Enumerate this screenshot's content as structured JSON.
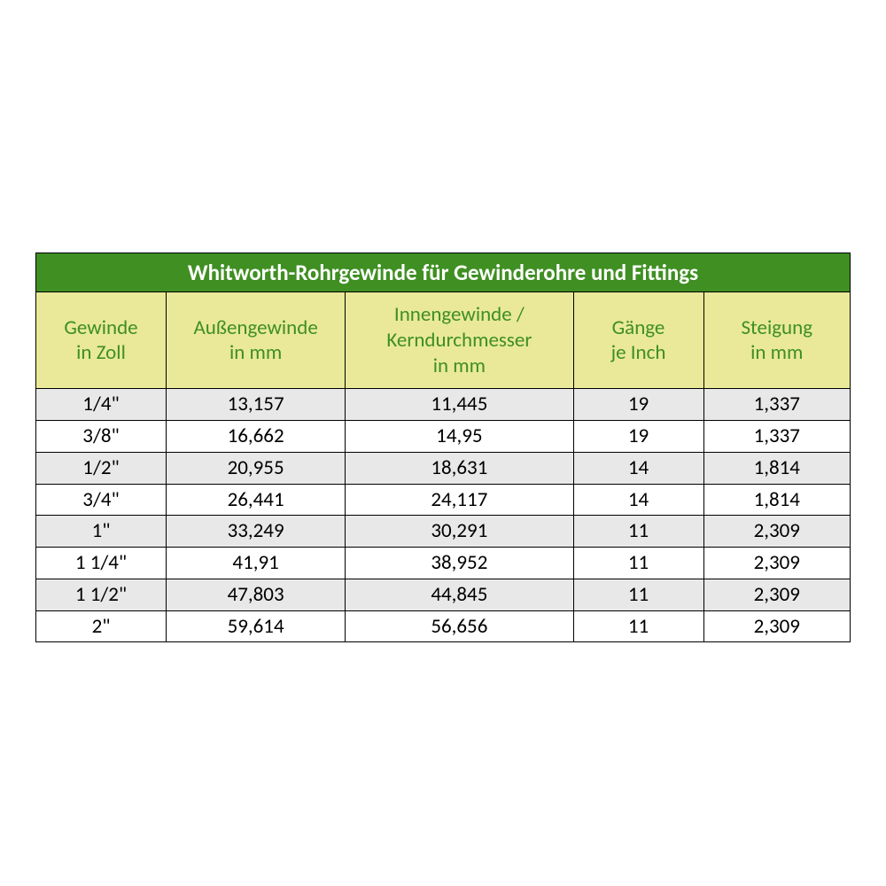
{
  "table": {
    "type": "table",
    "title": "Whitworth-Rohrgewinde für Gewinderohre und Fittings",
    "title_bg": "#3f8f22",
    "title_color": "#ffffff",
    "header_bg": "#e9e999",
    "header_color": "#3f8f22",
    "row_alt_bg": "#e8e8e8",
    "row_bg": "#ffffff",
    "border_color": "#000000",
    "columns": [
      {
        "label_l1": "Gewinde",
        "label_l2": "in Zoll",
        "label_l3": "",
        "width_pct": 16
      },
      {
        "label_l1": "Außengewinde",
        "label_l2": "in mm",
        "label_l3": "",
        "width_pct": 22
      },
      {
        "label_l1": "Innengewinde /",
        "label_l2": "Kerndurchmesser",
        "label_l3": "in mm",
        "width_pct": 28
      },
      {
        "label_l1": "Gänge",
        "label_l2": "je Inch",
        "label_l3": "",
        "width_pct": 16
      },
      {
        "label_l1": "Steigung",
        "label_l2": "in mm",
        "label_l3": "",
        "width_pct": 18
      }
    ],
    "rows": [
      [
        "1/4\"",
        "13,157",
        "11,445",
        "19",
        "1,337"
      ],
      [
        "3/8\"",
        "16,662",
        "14,95",
        "19",
        "1,337"
      ],
      [
        "1/2\"",
        "20,955",
        "18,631",
        "14",
        "1,814"
      ],
      [
        "3/4\"",
        "26,441",
        "24,117",
        "14",
        "1,814"
      ],
      [
        "1\"",
        "33,249",
        "30,291",
        "11",
        "2,309"
      ],
      [
        "1 1/4\"",
        "41,91",
        "38,952",
        "11",
        "2,309"
      ],
      [
        "1 1/2\"",
        "47,803",
        "44,845",
        "11",
        "2,309"
      ],
      [
        "2\"",
        "59,614",
        "56,656",
        "11",
        "2,309"
      ]
    ]
  }
}
